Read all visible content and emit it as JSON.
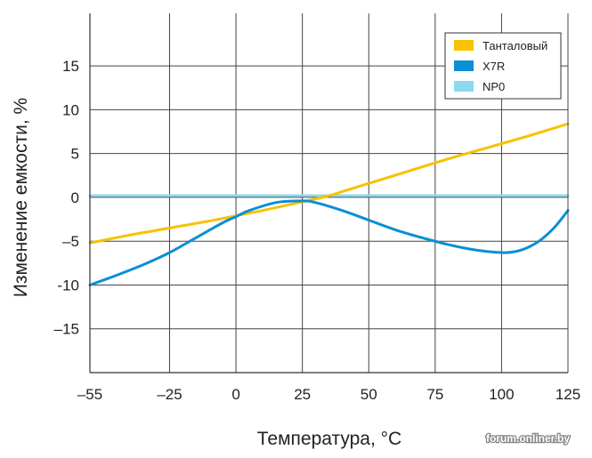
{
  "chart_data": {
    "type": "line",
    "xlabel": "Температура, °C",
    "ylabel": "Изменение емкости, %",
    "xlim": [
      -55,
      125
    ],
    "ylim": [
      -20,
      21
    ],
    "x_ticks": [
      -55,
      -25,
      0,
      25,
      50,
      75,
      100,
      125
    ],
    "x_tick_labels": [
      "–55",
      "–25",
      "0",
      "25",
      "50",
      "75",
      "100",
      "125"
    ],
    "y_ticks": [
      -15,
      -10,
      -5,
      0,
      5,
      10,
      15
    ],
    "y_tick_labels": [
      "–15",
      "-10",
      "–5",
      "0",
      "5",
      "10",
      "15"
    ],
    "grid": true,
    "legend_position": "top-right",
    "series": [
      {
        "name": "Танталовый",
        "color": "#f7c200",
        "x": [
          -55,
          -40,
          -25,
          -10,
          0,
          10,
          25,
          35,
          50,
          65,
          80,
          95,
          110,
          125
        ],
        "y": [
          -5.2,
          -4.3,
          -3.5,
          -2.7,
          -2.1,
          -1.5,
          -0.5,
          0.2,
          1.6,
          3.0,
          4.4,
          5.7,
          7.0,
          8.4
        ]
      },
      {
        "name": "X7R",
        "color": "#0a8fd6",
        "x": [
          -55,
          -45,
          -35,
          -25,
          -15,
          -5,
          0,
          5,
          15,
          25,
          30,
          40,
          50,
          60,
          70,
          80,
          90,
          100,
          105,
          110,
          115,
          120,
          125
        ],
        "y": [
          -10,
          -8.9,
          -7.7,
          -6.3,
          -4.6,
          -2.9,
          -2.2,
          -1.5,
          -0.6,
          -0.4,
          -0.6,
          -1.5,
          -2.6,
          -3.7,
          -4.6,
          -5.4,
          -6.0,
          -6.3,
          -6.2,
          -5.7,
          -4.8,
          -3.4,
          -1.5
        ]
      },
      {
        "name": "NP0",
        "color": "#8dd8f2",
        "x": [
          -55,
          125
        ],
        "y": [
          0.2,
          0.2
        ]
      }
    ]
  },
  "watermark": "forum.onliner.by"
}
